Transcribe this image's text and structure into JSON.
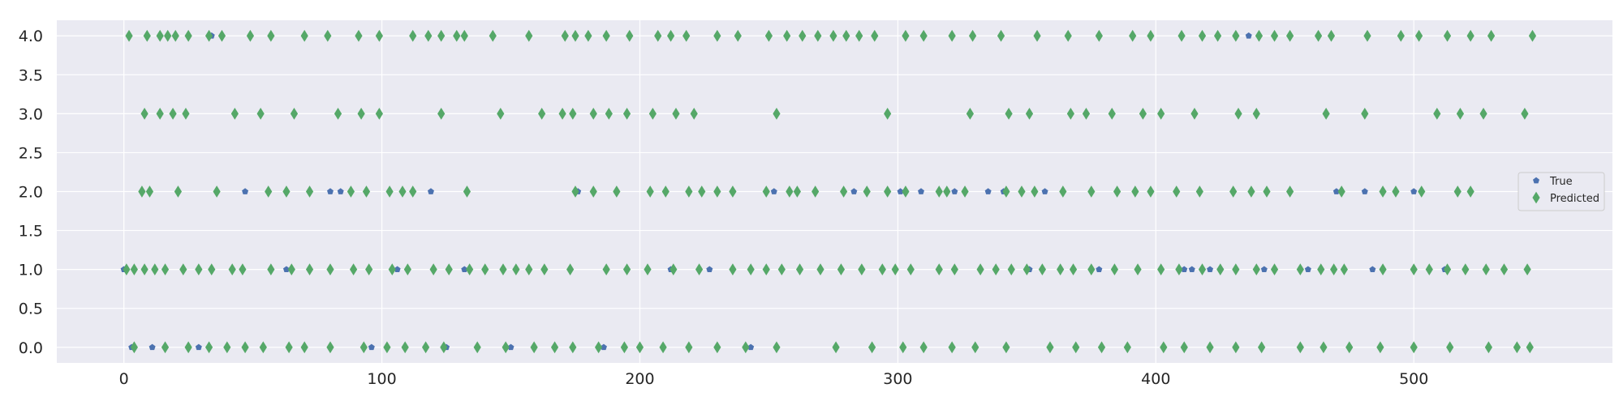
{
  "chart_data": {
    "type": "scatter",
    "title": "",
    "xlabel": "",
    "ylabel": "",
    "xlim": [
      -26,
      577
    ],
    "ylim": [
      -0.2,
      4.2
    ],
    "x_ticks": [
      0,
      100,
      200,
      300,
      400,
      500
    ],
    "y_ticks": [
      0.0,
      0.5,
      1.0,
      1.5,
      2.0,
      2.5,
      3.0,
      3.5,
      4.0
    ],
    "x_tick_labels": [
      "0",
      "100",
      "200",
      "300",
      "400",
      "500"
    ],
    "y_tick_labels": [
      "0.0",
      "0.5",
      "1.0",
      "1.5",
      "2.0",
      "2.5",
      "3.0",
      "3.5",
      "4.0"
    ],
    "grid": true,
    "background": "#eaeaf2",
    "grid_color": "#ffffff",
    "legend_position": "center-right",
    "series": [
      {
        "name": "True",
        "marker": "pentagon",
        "color": "#4c72b0",
        "x": [
          0,
          3,
          11,
          29,
          34,
          47,
          63,
          80,
          84,
          96,
          106,
          112,
          119,
          125,
          132,
          150,
          176,
          186,
          195,
          212,
          227,
          236,
          243,
          252,
          283,
          301,
          309,
          322,
          335,
          341,
          351,
          357,
          378,
          398,
          411,
          414,
          421,
          425,
          436,
          442,
          459,
          470,
          481,
          484,
          500,
          512
        ],
        "y": [
          1,
          0,
          0,
          0,
          4,
          2,
          1,
          2,
          2,
          0,
          1,
          2,
          2,
          0,
          1,
          0,
          2,
          0,
          1,
          1,
          1,
          2,
          0,
          2,
          2,
          2,
          2,
          2,
          2,
          2,
          1,
          2,
          1,
          2,
          1,
          1,
          1,
          1,
          4,
          1,
          1,
          2,
          2,
          1,
          2,
          1
        ]
      },
      {
        "name": "Predicted",
        "marker": "thin_diamond",
        "color": "#55a868",
        "x": [
          2,
          9,
          14,
          17,
          20,
          25,
          33,
          38,
          49,
          57,
          70,
          79,
          91,
          99,
          112,
          118,
          123,
          129,
          132,
          143,
          157,
          171,
          175,
          180,
          187,
          196,
          207,
          212,
          218,
          230,
          238,
          250,
          257,
          263,
          269,
          275,
          280,
          285,
          291,
          303,
          310,
          321,
          329,
          340,
          354,
          366,
          378,
          391,
          398,
          410,
          418,
          424,
          431,
          440,
          446,
          452,
          463,
          468,
          482,
          495,
          502,
          513,
          522,
          530,
          546,
          8,
          14,
          19,
          24,
          43,
          53,
          66,
          83,
          92,
          99,
          123,
          146,
          162,
          170,
          174,
          182,
          188,
          195,
          205,
          214,
          221,
          253,
          296,
          328,
          343,
          351,
          367,
          373,
          383,
          395,
          402,
          415,
          432,
          439,
          466,
          481,
          509,
          518,
          527,
          543,
          7,
          10,
          21,
          36,
          56,
          63,
          72,
          88,
          94,
          103,
          108,
          112,
          133,
          175,
          182,
          191,
          204,
          210,
          219,
          224,
          230,
          236,
          249,
          258,
          261,
          268,
          279,
          288,
          296,
          303,
          316,
          319,
          326,
          342,
          348,
          353,
          364,
          375,
          385,
          392,
          398,
          408,
          417,
          430,
          437,
          443,
          452,
          472,
          488,
          493,
          503,
          517,
          522,
          1,
          4,
          8,
          12,
          16,
          23,
          29,
          34,
          42,
          46,
          57,
          65,
          72,
          80,
          89,
          95,
          104,
          110,
          120,
          126,
          134,
          140,
          147,
          152,
          157,
          163,
          173,
          187,
          195,
          203,
          213,
          223,
          236,
          243,
          249,
          255,
          262,
          270,
          278,
          286,
          294,
          299,
          305,
          316,
          322,
          332,
          338,
          344,
          350,
          356,
          363,
          368,
          375,
          384,
          393,
          402,
          409,
          418,
          425,
          431,
          439,
          446,
          456,
          464,
          469,
          473,
          488,
          500,
          506,
          513,
          520,
          528,
          535,
          544,
          4,
          16,
          25,
          33,
          40,
          47,
          54,
          64,
          70,
          80,
          93,
          102,
          109,
          117,
          124,
          137,
          148,
          159,
          167,
          174,
          184,
          194,
          200,
          209,
          219,
          230,
          241,
          253,
          276,
          290,
          302,
          310,
          321,
          330,
          342,
          359,
          369,
          379,
          389,
          403,
          411,
          421,
          431,
          441,
          456,
          465,
          475,
          487,
          500,
          514,
          529,
          540,
          545
        ],
        "y": [
          4,
          4,
          4,
          4,
          4,
          4,
          4,
          4,
          4,
          4,
          4,
          4,
          4,
          4,
          4,
          4,
          4,
          4,
          4,
          4,
          4,
          4,
          4,
          4,
          4,
          4,
          4,
          4,
          4,
          4,
          4,
          4,
          4,
          4,
          4,
          4,
          4,
          4,
          4,
          4,
          4,
          4,
          4,
          4,
          4,
          4,
          4,
          4,
          4,
          4,
          4,
          4,
          4,
          4,
          4,
          4,
          4,
          4,
          4,
          4,
          4,
          4,
          4,
          4,
          4,
          3,
          3,
          3,
          3,
          3,
          3,
          3,
          3,
          3,
          3,
          3,
          3,
          3,
          3,
          3,
          3,
          3,
          3,
          3,
          3,
          3,
          3,
          3,
          3,
          3,
          3,
          3,
          3,
          3,
          3,
          3,
          3,
          3,
          3,
          3,
          3,
          3,
          3,
          3,
          3,
          2,
          2,
          2,
          2,
          2,
          2,
          2,
          2,
          2,
          2,
          2,
          2,
          2,
          2,
          2,
          2,
          2,
          2,
          2,
          2,
          2,
          2,
          2,
          2,
          2,
          2,
          2,
          2,
          2,
          2,
          2,
          2,
          2,
          2,
          2,
          2,
          2,
          2,
          2,
          2,
          2,
          2,
          2,
          2,
          2,
          2,
          2,
          2,
          2,
          2,
          2,
          2,
          2,
          1,
          1,
          1,
          1,
          1,
          1,
          1,
          1,
          1,
          1,
          1,
          1,
          1,
          1,
          1,
          1,
          1,
          1,
          1,
          1,
          1,
          1,
          1,
          1,
          1,
          1,
          1,
          1,
          1,
          1,
          1,
          1,
          1,
          1,
          1,
          1,
          1,
          1,
          1,
          1,
          1,
          1,
          1,
          1,
          1,
          1,
          1,
          1,
          1,
          1,
          1,
          1,
          1,
          1,
          1,
          1,
          1,
          1,
          1,
          1,
          1,
          1,
          1,
          1,
          1,
          1,
          1,
          1,
          1,
          1,
          1,
          1,
          1,
          1,
          0,
          0,
          0,
          0,
          0,
          0,
          0,
          0,
          0,
          0,
          0,
          0,
          0,
          0,
          0,
          0,
          0,
          0,
          0,
          0,
          0,
          0,
          0,
          0,
          0,
          0,
          0,
          0,
          0,
          0,
          0,
          0,
          0,
          0,
          0,
          0,
          0,
          0,
          0,
          0,
          0,
          0,
          0,
          0,
          0,
          0,
          0,
          0,
          0,
          0,
          0,
          0,
          0
        ]
      }
    ]
  }
}
